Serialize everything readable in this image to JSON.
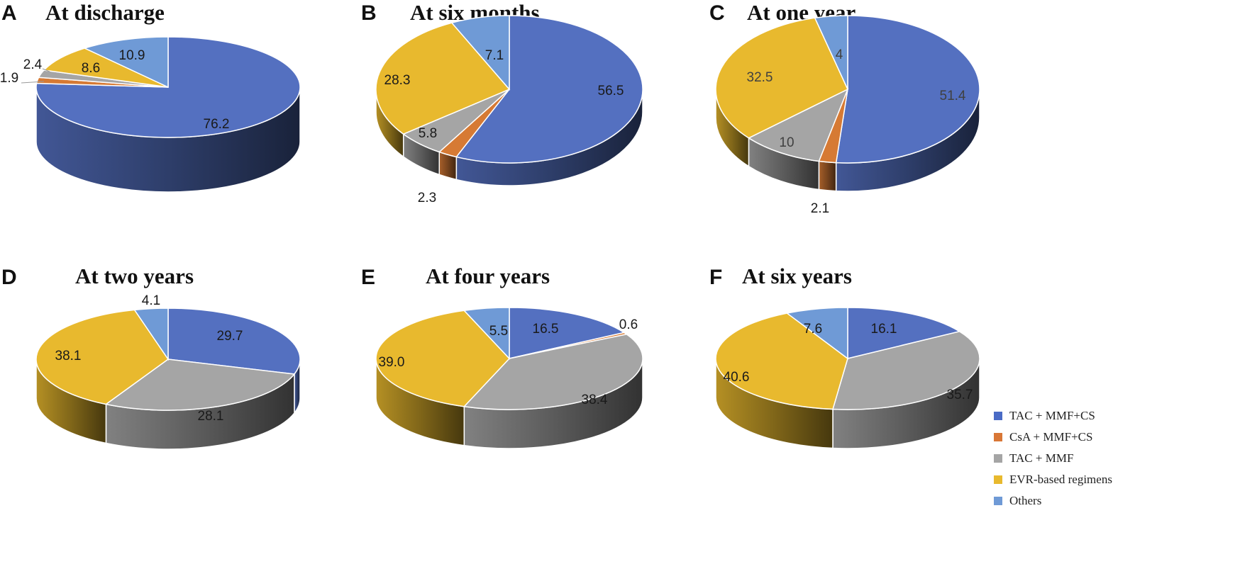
{
  "colors": {
    "tac_mmf_cs": "#5470c0",
    "csa_mmf_cs": "#d67a34",
    "tac_mmf": "#a5a5a5",
    "evr": "#e8b92e",
    "others": "#6f9ad6"
  },
  "legend": [
    {
      "label": "TAC + MMF+CS",
      "color": "#4a6bc6"
    },
    {
      "label": "CsA + MMF+CS",
      "color": "#d97736"
    },
    {
      "label": "TAC + MMF",
      "color": "#a5a5a5"
    },
    {
      "label": "EVR-based regimens",
      "color": "#e8b92e"
    },
    {
      "label": "Others",
      "color": "#6f9ad6"
    }
  ],
  "chart_data": [
    {
      "type": "pie",
      "panel": "A",
      "title": "At discharge",
      "categories": [
        "TAC + MMF+CS",
        "CsA + MMF+CS",
        "TAC + MMF",
        "EVR-based regimens",
        "Others"
      ],
      "values": [
        76.2,
        1.9,
        2.4,
        8.6,
        10.9
      ],
      "labels": [
        "76.2",
        "1.9",
        "2.4",
        "8.6",
        "10.9"
      ]
    },
    {
      "type": "pie",
      "panel": "B",
      "title": "At six months",
      "categories": [
        "TAC + MMF+CS",
        "CsA + MMF+CS",
        "TAC + MMF",
        "EVR-based regimens",
        "Others"
      ],
      "values": [
        56.5,
        2.3,
        5.8,
        28.3,
        7.1
      ],
      "labels": [
        "56.5",
        "2.3",
        "5.8",
        "28.3",
        "7.1"
      ]
    },
    {
      "type": "pie",
      "panel": "C",
      "title": "At one year",
      "categories": [
        "TAC + MMF+CS",
        "CsA + MMF+CS",
        "TAC + MMF",
        "EVR-based regimens",
        "Others"
      ],
      "values": [
        51.4,
        2.1,
        10,
        32.5,
        4
      ],
      "labels": [
        "51.4",
        "2.1",
        "10",
        "32.5",
        "4"
      ]
    },
    {
      "type": "pie",
      "panel": "D",
      "title": "At two years",
      "categories": [
        "TAC + MMF+CS",
        "CsA + MMF+CS",
        "TAC + MMF",
        "EVR-based regimens",
        "Others"
      ],
      "values": [
        29.7,
        0,
        28.1,
        38.1,
        4.1
      ],
      "labels": [
        "29.7",
        "",
        "28.1",
        "38.1",
        "4.1"
      ]
    },
    {
      "type": "pie",
      "panel": "E",
      "title": "At four years",
      "categories": [
        "TAC + MMF+CS",
        "CsA + MMF+CS",
        "TAC + MMF",
        "EVR-based regimens",
        "Others"
      ],
      "values": [
        16.5,
        0.6,
        38.4,
        39.0,
        5.5
      ],
      "labels": [
        "16.5",
        "0.6",
        "38.4",
        "39.0",
        "5.5"
      ]
    },
    {
      "type": "pie",
      "panel": "F",
      "title": "At six years",
      "categories": [
        "TAC + MMF+CS",
        "CsA + MMF+CS",
        "TAC + MMF",
        "EVR-based regimens",
        "Others"
      ],
      "values": [
        16.1,
        0,
        35.7,
        40.6,
        7.6
      ],
      "labels": [
        "16.1",
        "",
        "35.7",
        "40.6",
        "7.6"
      ]
    }
  ]
}
